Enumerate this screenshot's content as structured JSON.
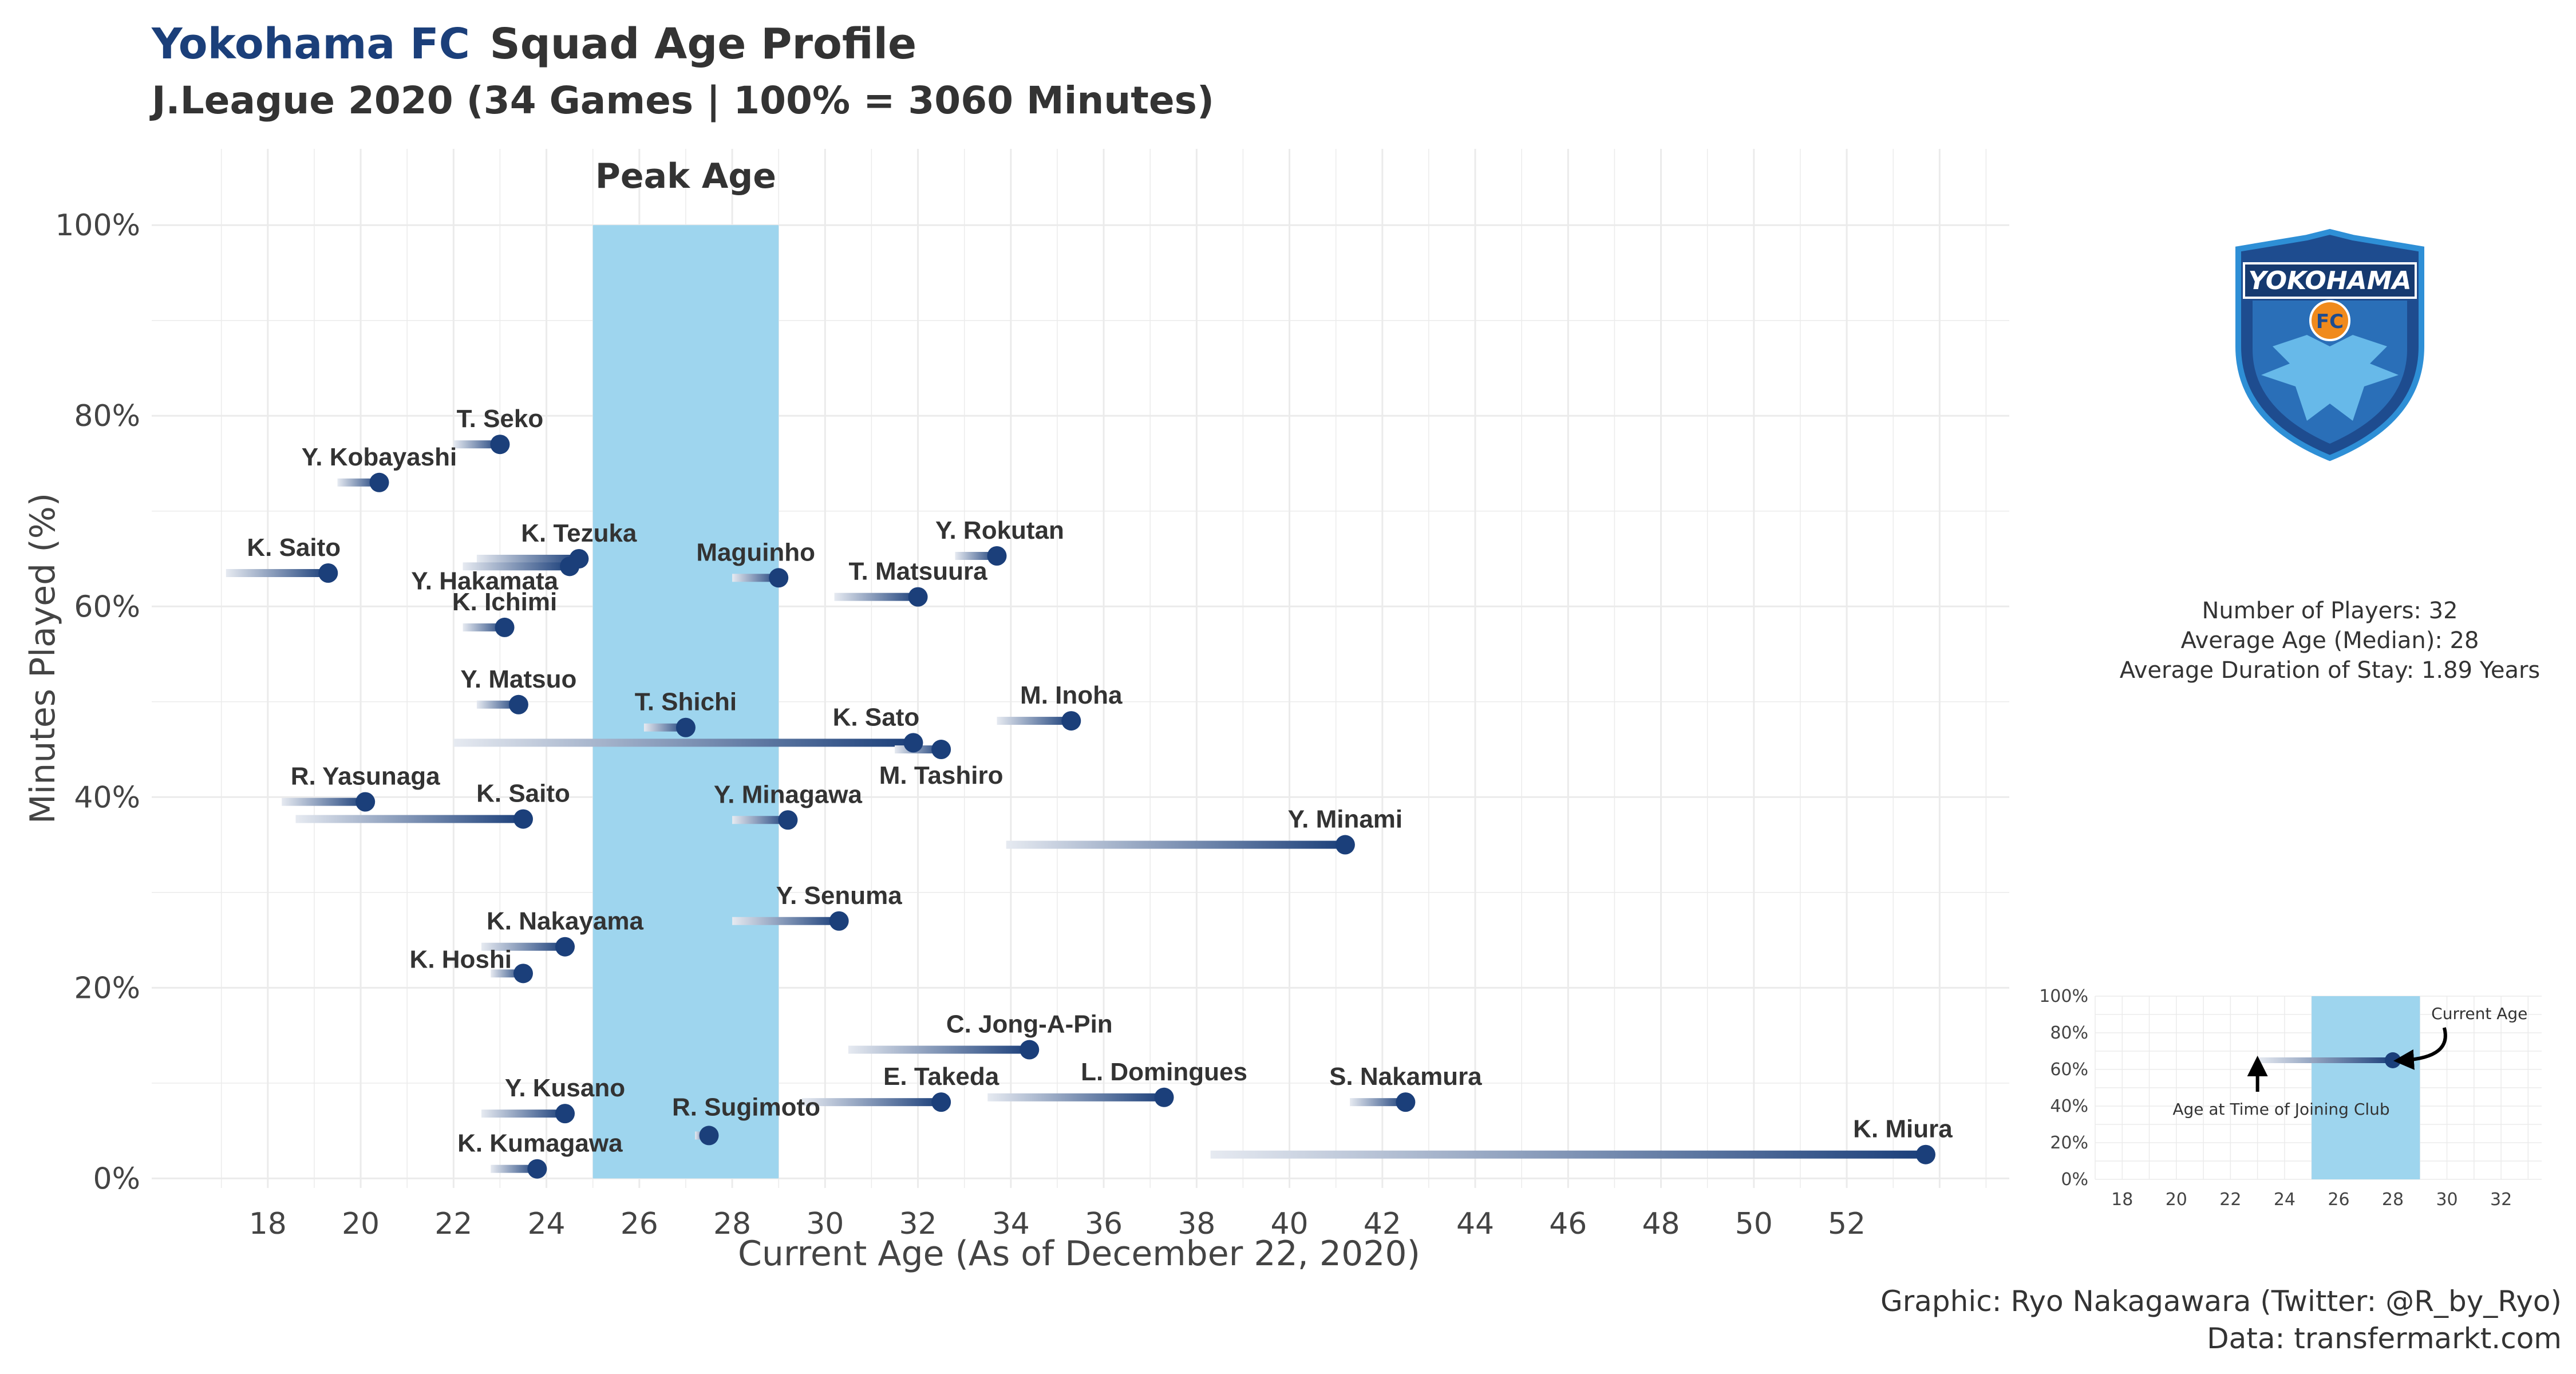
{
  "title": {
    "club": "Yokohama FC",
    "main": "Squad Age Profile",
    "subtitle": "J.League 2020 (34 Games | 100% = 3060 Minutes)"
  },
  "caption": {
    "line1": "Graphic: Ryo Nakagawara (Twitter: @R_by_Ryo)",
    "line2": "Data: transfermarkt.com"
  },
  "stats": {
    "players": "Number of Players: 32",
    "median_age": "Average Age (Median): 28",
    "stay": "Average Duration of Stay: 1.89 Years"
  },
  "logo": {
    "text": "YOKOHAMA",
    "badge": "FC"
  },
  "colors": {
    "peak_band": "#9ED5EE",
    "point": "#1B3F7A",
    "segment_start": "#E6EAF1",
    "grid": "#E5E5E5"
  },
  "chart_data": {
    "type": "scatter",
    "xlabel": "Current Age (As of December 22, 2020)",
    "ylabel": "Minutes Played (%)",
    "xlim": [
      15.5,
      55.5
    ],
    "ylim": [
      -1,
      108
    ],
    "xticks": [
      18,
      20,
      22,
      24,
      26,
      28,
      30,
      32,
      34,
      36,
      38,
      40,
      42,
      44,
      46,
      48,
      50,
      52
    ],
    "yticks": [
      0,
      20,
      40,
      60,
      80,
      100
    ],
    "ytick_labels": [
      "0%",
      "20%",
      "40%",
      "60%",
      "80%",
      "100%"
    ],
    "peak_band": {
      "label": "Peak Age",
      "from": 25,
      "to": 29
    },
    "players": [
      {
        "name": "T. Seko",
        "age": 23.0,
        "joined": 22.0,
        "pct": 77.0
      },
      {
        "name": "Y. Kobayashi",
        "age": 20.4,
        "joined": 19.5,
        "pct": 73.0
      },
      {
        "name": "K. Saito",
        "age": 19.3,
        "joined": 17.1,
        "pct": 63.5
      },
      {
        "name": "K. Tezuka",
        "age": 24.7,
        "joined": 22.5,
        "pct": 65.0
      },
      {
        "name": "Y. Hakamata",
        "age": 24.5,
        "joined": 22.2,
        "pct": 64.2
      },
      {
        "name": "Maguinho",
        "age": 29.0,
        "joined": 28.0,
        "pct": 63.0
      },
      {
        "name": "Y. Rokutan",
        "age": 33.7,
        "joined": 32.8,
        "pct": 65.3
      },
      {
        "name": "T. Matsuura",
        "age": 32.0,
        "joined": 30.2,
        "pct": 61.0
      },
      {
        "name": "K. Ichimi",
        "age": 23.1,
        "joined": 22.2,
        "pct": 57.8
      },
      {
        "name": "Y. Matsuo",
        "age": 23.4,
        "joined": 22.5,
        "pct": 49.7
      },
      {
        "name": "T. Shichi",
        "age": 27.0,
        "joined": 26.1,
        "pct": 47.3
      },
      {
        "name": "K. Sato",
        "age": 31.9,
        "joined": 22.0,
        "pct": 45.7
      },
      {
        "name": "M. Tashiro",
        "age": 32.5,
        "joined": 31.5,
        "pct": 45.0
      },
      {
        "name": "M. Inoha",
        "age": 35.3,
        "joined": 33.7,
        "pct": 48.0
      },
      {
        "name": "R. Yasunaga",
        "age": 20.1,
        "joined": 18.3,
        "pct": 39.5
      },
      {
        "name": "K. Saito",
        "age": 23.5,
        "joined": 18.6,
        "pct": 37.7
      },
      {
        "name": "Y. Minagawa",
        "age": 29.2,
        "joined": 28.0,
        "pct": 37.6
      },
      {
        "name": "Y. Minami",
        "age": 41.2,
        "joined": 33.9,
        "pct": 35.0
      },
      {
        "name": "Y. Senuma",
        "age": 30.3,
        "joined": 28.0,
        "pct": 27.0
      },
      {
        "name": "K. Nakayama",
        "age": 24.4,
        "joined": 22.6,
        "pct": 24.3
      },
      {
        "name": "K. Hoshi",
        "age": 23.5,
        "joined": 22.8,
        "pct": 21.5
      },
      {
        "name": "C. Jong-A-Pin",
        "age": 34.4,
        "joined": 30.5,
        "pct": 13.5
      },
      {
        "name": "E. Takeda",
        "age": 32.5,
        "joined": 29.5,
        "pct": 8.0
      },
      {
        "name": "L. Domingues",
        "age": 37.3,
        "joined": 33.5,
        "pct": 8.5
      },
      {
        "name": "S. Nakamura",
        "age": 42.5,
        "joined": 41.3,
        "pct": 8.0
      },
      {
        "name": "Y. Kusano",
        "age": 24.4,
        "joined": 22.6,
        "pct": 6.8
      },
      {
        "name": "R. Sugimoto",
        "age": 27.5,
        "joined": 27.2,
        "pct": 4.5
      },
      {
        "name": "K. Kumagawa",
        "age": 23.8,
        "joined": 22.8,
        "pct": 1.0
      },
      {
        "name": "K. Miura",
        "age": 53.7,
        "joined": 38.3,
        "pct": 2.5
      }
    ],
    "legend": {
      "xticks": [
        18,
        20,
        22,
        24,
        26,
        28,
        30,
        32
      ],
      "yticks": [
        "0%",
        "20%",
        "40%",
        "60%",
        "80%",
        "100%"
      ],
      "example": {
        "age": 28,
        "joined": 23,
        "pct": 65
      },
      "current_label": "Current Age",
      "joining_label": "Age at Time of Joining Club"
    }
  }
}
